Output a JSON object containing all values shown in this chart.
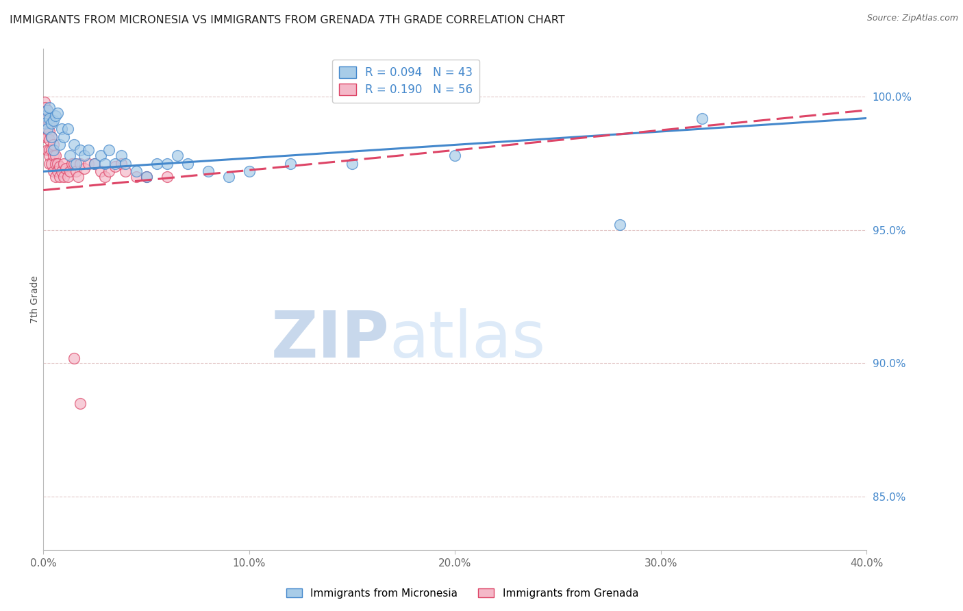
{
  "title": "IMMIGRANTS FROM MICRONESIA VS IMMIGRANTS FROM GRENADA 7TH GRADE CORRELATION CHART",
  "source": "Source: ZipAtlas.com",
  "ylabel": "7th Grade",
  "legend_labels": [
    "Immigrants from Micronesia",
    "Immigrants from Grenada"
  ],
  "legend_R": [
    0.094,
    0.19
  ],
  "legend_N": [
    43,
    56
  ],
  "color_blue": "#a8cce8",
  "color_pink": "#f4b8c8",
  "line_color_blue": "#4488cc",
  "line_color_pink": "#dd4466",
  "x_min": 0.0,
  "x_max": 0.4,
  "y_min": 83.0,
  "y_max": 101.8,
  "y_ticks": [
    85.0,
    90.0,
    95.0,
    100.0
  ],
  "x_ticks": [
    0.0,
    0.1,
    0.2,
    0.3,
    0.4
  ],
  "x_tick_labels": [
    "0.0%",
    "10.0%",
    "20.0%",
    "30.0%",
    "40.0%"
  ],
  "y_tick_labels": [
    "85.0%",
    "90.0%",
    "95.0%",
    "100.0%"
  ],
  "blue_x": [
    0.001,
    0.001,
    0.002,
    0.002,
    0.003,
    0.003,
    0.004,
    0.004,
    0.005,
    0.005,
    0.006,
    0.007,
    0.008,
    0.009,
    0.01,
    0.012,
    0.013,
    0.015,
    0.016,
    0.018,
    0.02,
    0.022,
    0.025,
    0.028,
    0.03,
    0.032,
    0.035,
    0.038,
    0.04,
    0.045,
    0.05,
    0.055,
    0.06,
    0.065,
    0.07,
    0.08,
    0.09,
    0.1,
    0.12,
    0.15,
    0.2,
    0.28,
    0.32
  ],
  "blue_y": [
    99.3,
    99.0,
    99.5,
    98.8,
    99.6,
    99.2,
    98.5,
    99.0,
    98.0,
    99.1,
    99.3,
    99.4,
    98.2,
    98.8,
    98.5,
    98.8,
    97.8,
    98.2,
    97.5,
    98.0,
    97.8,
    98.0,
    97.5,
    97.8,
    97.5,
    98.0,
    97.5,
    97.8,
    97.5,
    97.2,
    97.0,
    97.5,
    97.5,
    97.8,
    97.5,
    97.2,
    97.0,
    97.2,
    97.5,
    97.5,
    97.8,
    95.2,
    99.2
  ],
  "pink_x": [
    0.0005,
    0.001,
    0.001,
    0.001,
    0.001,
    0.001,
    0.001,
    0.002,
    0.002,
    0.002,
    0.002,
    0.002,
    0.003,
    0.003,
    0.003,
    0.003,
    0.003,
    0.003,
    0.004,
    0.004,
    0.004,
    0.005,
    0.005,
    0.005,
    0.006,
    0.006,
    0.006,
    0.007,
    0.007,
    0.008,
    0.008,
    0.009,
    0.01,
    0.01,
    0.011,
    0.012,
    0.013,
    0.014,
    0.015,
    0.016,
    0.017,
    0.018,
    0.02,
    0.022,
    0.025,
    0.028,
    0.03,
    0.032,
    0.035,
    0.038,
    0.04,
    0.045,
    0.05,
    0.06,
    0.015,
    0.018
  ],
  "pink_y": [
    99.8,
    99.6,
    99.4,
    99.2,
    99.0,
    98.8,
    98.5,
    99.5,
    99.2,
    98.8,
    98.5,
    98.0,
    99.0,
    98.7,
    98.4,
    98.0,
    97.8,
    97.5,
    98.5,
    98.0,
    97.5,
    98.2,
    97.8,
    97.2,
    97.8,
    97.5,
    97.0,
    97.5,
    97.2,
    97.0,
    97.4,
    97.2,
    97.0,
    97.5,
    97.3,
    97.0,
    97.2,
    97.5,
    97.5,
    97.2,
    97.0,
    97.5,
    97.3,
    97.5,
    97.5,
    97.2,
    97.0,
    97.2,
    97.4,
    97.5,
    97.2,
    97.0,
    97.0,
    97.0,
    90.2,
    88.5
  ],
  "blue_trend_x0": 0.0,
  "blue_trend_y0": 97.2,
  "blue_trend_x1": 0.4,
  "blue_trend_y1": 99.2,
  "pink_trend_x0": 0.0,
  "pink_trend_y0": 96.5,
  "pink_trend_x1": 0.4,
  "pink_trend_y1": 99.5,
  "watermark_zip": "ZIP",
  "watermark_atlas": "atlas",
  "watermark_color": "#d8e8f4",
  "background_color": "#ffffff"
}
